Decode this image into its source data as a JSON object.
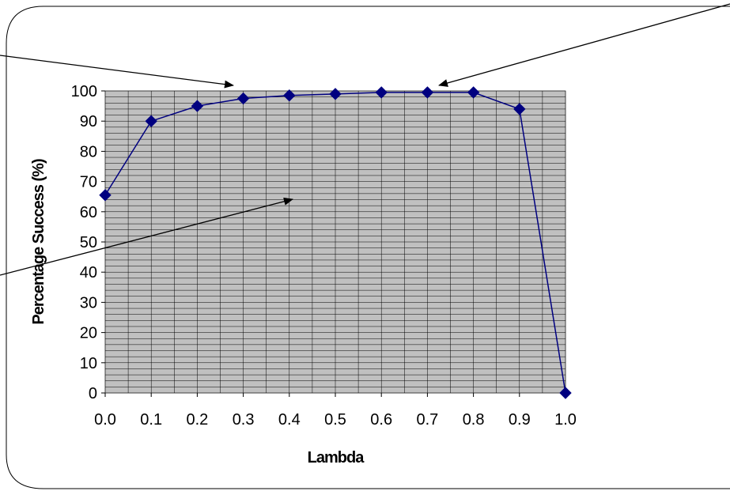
{
  "chart_data": {
    "type": "line",
    "title": "",
    "xlabel": "Lambda",
    "ylabel": "Percentage Success (%)",
    "x": [
      0.0,
      0.1,
      0.2,
      0.3,
      0.4,
      0.5,
      0.6,
      0.7,
      0.8,
      0.9,
      1.0
    ],
    "x_tick_labels": [
      "0.0",
      "0.1",
      "0.2",
      "0.3",
      "0.4",
      "0.5",
      "0.6",
      "0.7",
      "0.8",
      "0.9",
      "1.0"
    ],
    "y_tick_labels": [
      "0",
      "10",
      "20",
      "30",
      "40",
      "50",
      "60",
      "70",
      "80",
      "90",
      "100"
    ],
    "xlim": [
      0.0,
      1.0
    ],
    "ylim": [
      0,
      100
    ],
    "grid": true,
    "series": [
      {
        "values": [
          65.5,
          90,
          95,
          97.5,
          98.5,
          99,
          99.5,
          99.5,
          99.5,
          94,
          0
        ]
      }
    ],
    "colors": {
      "line": "#000080",
      "marker": "#000080",
      "plot_background": "#c0c0c0",
      "grid": "#000000"
    }
  }
}
